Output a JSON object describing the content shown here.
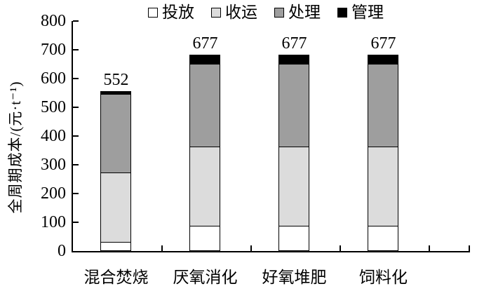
{
  "chart_data": {
    "type": "bar",
    "stacked": true,
    "title": "",
    "categories": [
      "混合焚烧",
      "厌氧消化",
      "好氧堆肥",
      "饲料化"
    ],
    "series": [
      {
        "name": "投放",
        "color": "#ffffff",
        "values": [
          30,
          85,
          85,
          85
        ]
      },
      {
        "name": "收运",
        "color": "#dcdcdc",
        "values": [
          240,
          275,
          275,
          275
        ]
      },
      {
        "name": "处理",
        "color": "#9e9e9e",
        "values": [
          275,
          290,
          290,
          290
        ]
      },
      {
        "name": "管理",
        "color": "#000000",
        "values": [
          7,
          27,
          27,
          27
        ]
      }
    ],
    "totals": [
      552,
      677,
      677,
      677
    ],
    "ylabel": "全周期成本/(元·t⁻¹)",
    "xlabel": "",
    "ylim": [
      0,
      800
    ],
    "yticks": [
      0,
      100,
      200,
      300,
      400,
      500,
      600,
      700,
      800
    ],
    "legend_position": "top",
    "grid": false,
    "axis_color": "#000000"
  }
}
